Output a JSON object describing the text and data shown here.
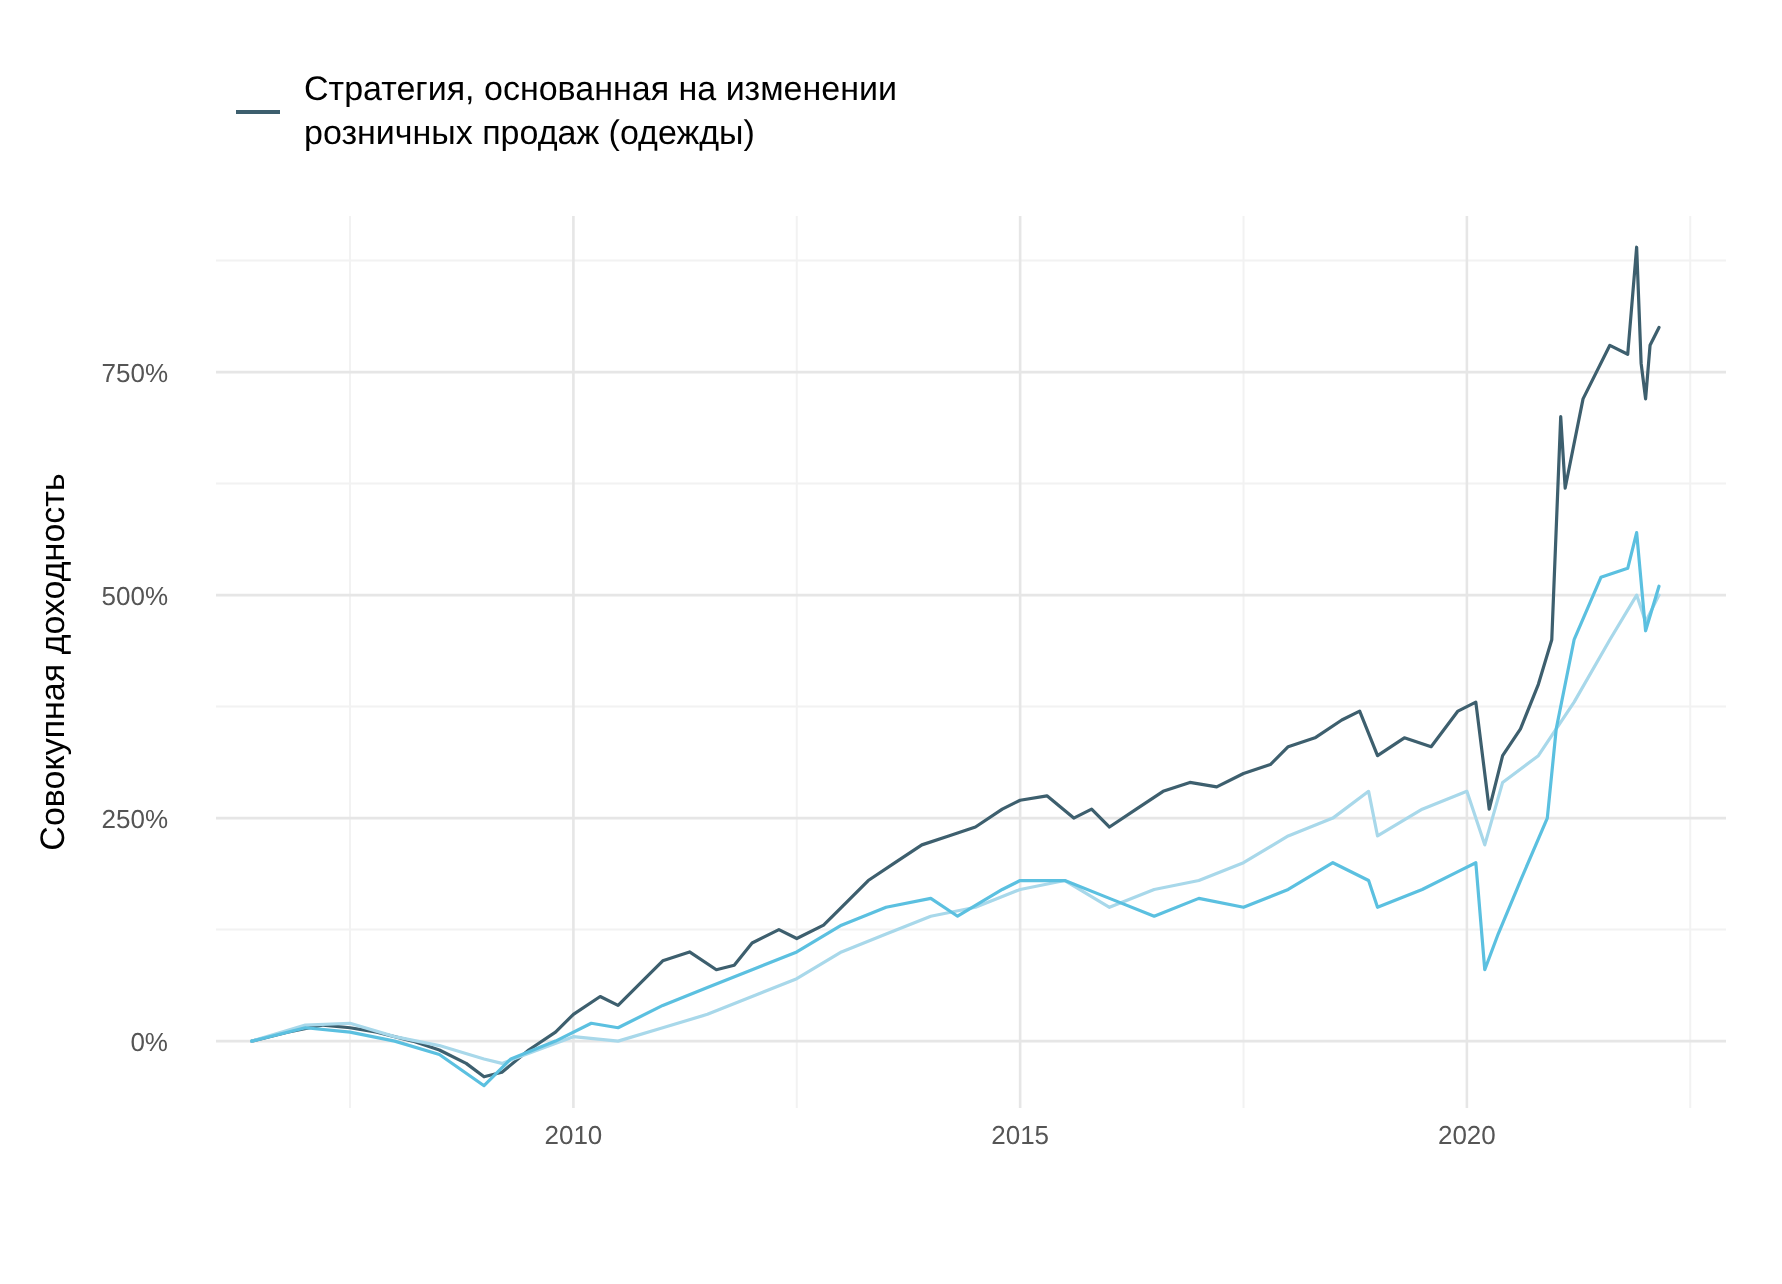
{
  "chart_data": {
    "type": "line",
    "ylabel": "Совокупная доходность",
    "legend": "top",
    "grid": true,
    "xlim": [
      2006.0,
      2022.9
    ],
    "xticks": [
      2010,
      2015,
      2020
    ],
    "ylim": [
      -75,
      925
    ],
    "yticks": [
      {
        "value": 0,
        "label": "0%"
      },
      {
        "value": 250,
        "label": "250%"
      },
      {
        "value": 500,
        "label": "500%"
      },
      {
        "value": 750,
        "label": "750%"
      }
    ],
    "series": [
      {
        "name": "Стратегия, основанная на изменении розничных продаж (одежды)",
        "color": "#3d5f6e",
        "x": [
          2006.4,
          2006.8,
          2007.2,
          2007.5,
          2007.8,
          2008.2,
          2008.5,
          2008.8,
          2009.0,
          2009.2,
          2009.5,
          2009.8,
          2010.0,
          2010.3,
          2010.5,
          2010.8,
          2011.0,
          2011.3,
          2011.6,
          2011.8,
          2012.0,
          2012.3,
          2012.5,
          2012.8,
          2013.0,
          2013.3,
          2013.6,
          2013.9,
          2014.2,
          2014.5,
          2014.8,
          2015.0,
          2015.3,
          2015.6,
          2015.8,
          2016.0,
          2016.3,
          2016.6,
          2016.9,
          2017.2,
          2017.5,
          2017.8,
          2018.0,
          2018.3,
          2018.6,
          2018.8,
          2019.0,
          2019.3,
          2019.6,
          2019.9,
          2020.1,
          2020.25,
          2020.4,
          2020.6,
          2020.8,
          2020.95,
          2021.05,
          2021.1,
          2021.3,
          2021.6,
          2021.8,
          2021.9,
          2021.95,
          2022.0,
          2022.05,
          2022.15
        ],
        "values": [
          0,
          10,
          18,
          15,
          10,
          0,
          -10,
          -25,
          -40,
          -35,
          -10,
          10,
          30,
          50,
          40,
          70,
          90,
          100,
          80,
          85,
          110,
          125,
          115,
          130,
          150,
          180,
          200,
          220,
          230,
          240,
          260,
          270,
          275,
          250,
          260,
          240,
          260,
          280,
          290,
          285,
          300,
          310,
          330,
          340,
          360,
          370,
          320,
          340,
          330,
          370,
          380,
          260,
          320,
          350,
          400,
          450,
          700,
          620,
          720,
          780,
          770,
          890,
          760,
          720,
          780,
          800
        ]
      },
      {
        "color": "#a8d8ea",
        "x": [
          2006.4,
          2007.0,
          2007.5,
          2008.0,
          2008.5,
          2009.0,
          2009.2,
          2009.6,
          2010.0,
          2010.5,
          2011.0,
          2011.5,
          2012.0,
          2012.5,
          2013.0,
          2013.5,
          2014.0,
          2014.5,
          2015.0,
          2015.5,
          2016.0,
          2016.5,
          2017.0,
          2017.5,
          2018.0,
          2018.5,
          2018.9,
          2019.0,
          2019.5,
          2020.0,
          2020.2,
          2020.4,
          2020.8,
          2021.2,
          2021.6,
          2021.9,
          2022.0,
          2022.15
        ],
        "values": [
          0,
          18,
          20,
          5,
          -5,
          -20,
          -25,
          -10,
          5,
          0,
          15,
          30,
          50,
          70,
          100,
          120,
          140,
          150,
          170,
          180,
          150,
          170,
          180,
          200,
          230,
          250,
          280,
          230,
          260,
          280,
          220,
          290,
          320,
          380,
          450,
          500,
          470,
          500
        ]
      },
      {
        "color": "#5bc0e0",
        "x": [
          2006.4,
          2007.0,
          2007.5,
          2008.0,
          2008.5,
          2009.0,
          2009.3,
          2009.8,
          2010.2,
          2010.5,
          2011.0,
          2011.5,
          2012.0,
          2012.5,
          2013.0,
          2013.5,
          2014.0,
          2014.3,
          2014.8,
          2015.0,
          2015.5,
          2016.0,
          2016.5,
          2017.0,
          2017.5,
          2018.0,
          2018.5,
          2018.9,
          2019.0,
          2019.5,
          2019.9,
          2020.1,
          2020.2,
          2020.35,
          2020.6,
          2020.9,
          2021.0,
          2021.2,
          2021.5,
          2021.8,
          2021.9,
          2022.0,
          2022.15
        ],
        "values": [
          0,
          15,
          10,
          0,
          -15,
          -50,
          -20,
          0,
          20,
          15,
          40,
          60,
          80,
          100,
          130,
          150,
          160,
          140,
          170,
          180,
          180,
          160,
          140,
          160,
          150,
          170,
          200,
          180,
          150,
          170,
          190,
          200,
          80,
          120,
          180,
          250,
          350,
          450,
          520,
          530,
          570,
          460,
          510
        ]
      }
    ]
  }
}
